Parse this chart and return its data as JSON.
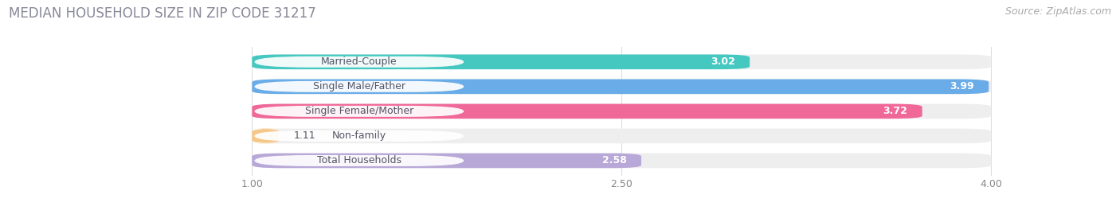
{
  "title": "MEDIAN HOUSEHOLD SIZE IN ZIP CODE 31217",
  "source": "Source: ZipAtlas.com",
  "categories": [
    "Married-Couple",
    "Single Male/Father",
    "Single Female/Mother",
    "Non-family",
    "Total Households"
  ],
  "values": [
    3.02,
    3.99,
    3.72,
    1.11,
    2.58
  ],
  "bar_colors": [
    "#45c8c0",
    "#6aace8",
    "#f06898",
    "#f5c888",
    "#b8a8d8"
  ],
  "label_bg_colors": [
    "#45c8c0",
    "#6aace8",
    "#f06898",
    "#f5c888",
    "#b8a8d8"
  ],
  "xlim_left": 0.0,
  "xlim_right": 4.5,
  "xdata_min": 1.0,
  "xdata_max": 4.0,
  "xticks": [
    1.0,
    2.5,
    4.0
  ],
  "xtick_labels": [
    "1.00",
    "2.50",
    "4.00"
  ],
  "title_fontsize": 12,
  "source_fontsize": 9,
  "label_fontsize": 9,
  "value_fontsize": 9,
  "background_color": "#ffffff",
  "bar_background_color": "#eeeeee",
  "label_text_color": "#555566",
  "title_color": "#888899"
}
